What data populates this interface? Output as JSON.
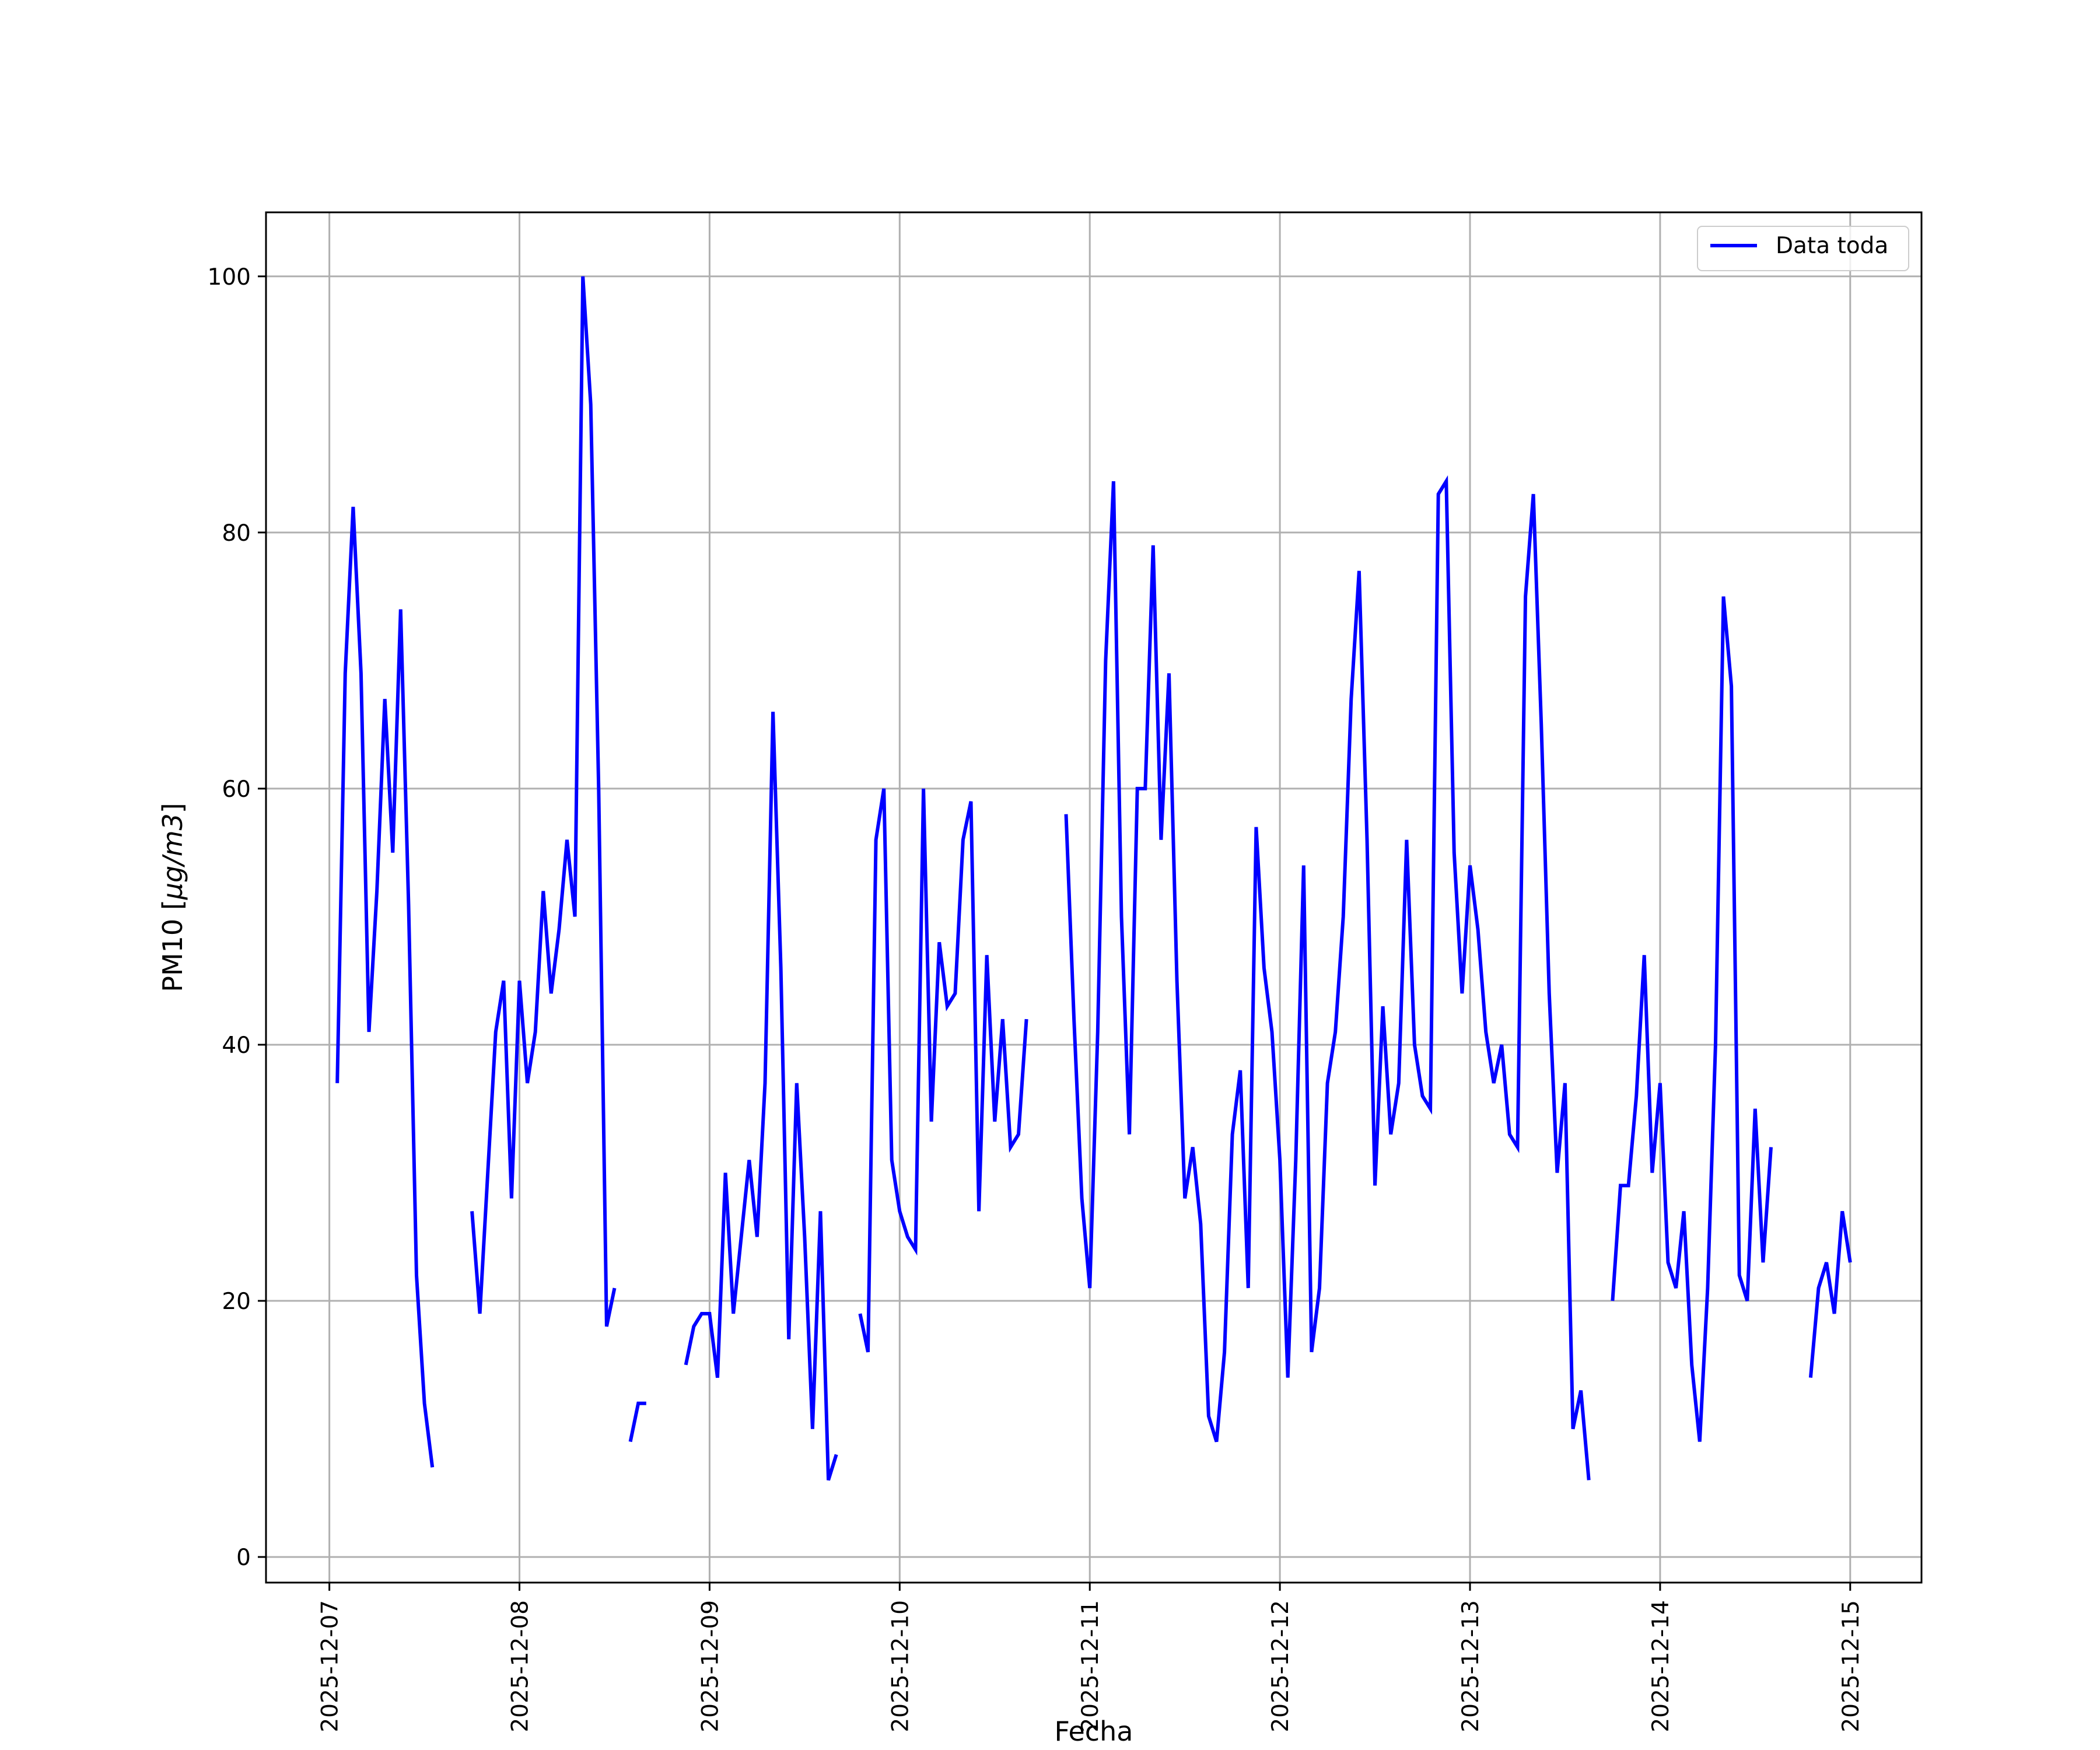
{
  "chart_data": {
    "type": "line",
    "title": "",
    "xlabel": "Fecha",
    "ylabel_prefix": "PM10 [",
    "ylabel_unit": "µg/m3",
    "ylabel_suffix": "]",
    "x_is_date": true,
    "xlim": [
      "2025-12-06T16:00",
      "2025-12-15T09:00"
    ],
    "ylim": [
      -2,
      105
    ],
    "x_ticks": [
      "2025-12-07",
      "2025-12-08",
      "2025-12-09",
      "2025-12-10",
      "2025-12-11",
      "2025-12-12",
      "2025-12-13",
      "2025-12-14",
      "2025-12-15"
    ],
    "y_ticks": [
      0,
      20,
      40,
      60,
      80,
      100
    ],
    "y_tick_labels": [
      "0",
      "20",
      "40",
      "60",
      "80",
      "100"
    ],
    "grid": true,
    "legend_position": "top-right",
    "colors": {
      "series": "#0000ff",
      "grid": "#b0b0b0"
    },
    "series": [
      {
        "name": "Data toda",
        "color": "#0000ff",
        "points": [
          [
            "2025-12-07T01:00",
            37
          ],
          [
            "2025-12-07T02:00",
            69
          ],
          [
            "2025-12-07T03:00",
            82
          ],
          [
            "2025-12-07T04:00",
            69
          ],
          [
            "2025-12-07T05:00",
            41
          ],
          [
            "2025-12-07T06:00",
            52
          ],
          [
            "2025-12-07T07:00",
            67
          ],
          [
            "2025-12-07T08:00",
            55
          ],
          [
            "2025-12-07T09:00",
            74
          ],
          [
            "2025-12-07T10:00",
            51
          ],
          [
            "2025-12-07T11:00",
            22
          ],
          [
            "2025-12-07T12:00",
            12
          ],
          [
            "2025-12-07T13:00",
            7
          ],
          [
            "2025-12-07T14:00",
            null
          ],
          [
            "2025-12-07T18:00",
            27
          ],
          [
            "2025-12-07T19:00",
            19
          ],
          [
            "2025-12-07T20:00",
            30
          ],
          [
            "2025-12-07T21:00",
            41
          ],
          [
            "2025-12-07T22:00",
            45
          ],
          [
            "2025-12-07T23:00",
            28
          ],
          [
            "2025-12-08T00:00",
            45
          ],
          [
            "2025-12-08T01:00",
            37
          ],
          [
            "2025-12-08T02:00",
            41
          ],
          [
            "2025-12-08T03:00",
            52
          ],
          [
            "2025-12-08T04:00",
            44
          ],
          [
            "2025-12-08T05:00",
            49
          ],
          [
            "2025-12-08T06:00",
            56
          ],
          [
            "2025-12-08T07:00",
            50
          ],
          [
            "2025-12-08T08:00",
            100
          ],
          [
            "2025-12-08T09:00",
            90
          ],
          [
            "2025-12-08T10:00",
            60
          ],
          [
            "2025-12-08T11:00",
            18
          ],
          [
            "2025-12-08T12:00",
            21
          ],
          [
            "2025-12-08T13:00",
            null
          ],
          [
            "2025-12-08T14:00",
            9
          ],
          [
            "2025-12-08T15:00",
            12
          ],
          [
            "2025-12-08T16:00",
            12
          ],
          [
            "2025-12-08T17:00",
            null
          ],
          [
            "2025-12-08T21:00",
            15
          ],
          [
            "2025-12-08T22:00",
            18
          ],
          [
            "2025-12-08T23:00",
            19
          ],
          [
            "2025-12-09T00:00",
            19
          ],
          [
            "2025-12-09T01:00",
            14
          ],
          [
            "2025-12-09T02:00",
            30
          ],
          [
            "2025-12-09T03:00",
            19
          ],
          [
            "2025-12-09T04:00",
            25
          ],
          [
            "2025-12-09T05:00",
            31
          ],
          [
            "2025-12-09T06:00",
            25
          ],
          [
            "2025-12-09T07:00",
            37
          ],
          [
            "2025-12-09T08:00",
            66
          ],
          [
            "2025-12-09T09:00",
            46
          ],
          [
            "2025-12-09T10:00",
            17
          ],
          [
            "2025-12-09T11:00",
            37
          ],
          [
            "2025-12-09T12:00",
            25
          ],
          [
            "2025-12-09T13:00",
            10
          ],
          [
            "2025-12-09T14:00",
            27
          ],
          [
            "2025-12-09T15:00",
            6
          ],
          [
            "2025-12-09T16:00",
            8
          ],
          [
            "2025-12-09T17:00",
            null
          ],
          [
            "2025-12-09T19:00",
            19
          ],
          [
            "2025-12-09T20:00",
            16
          ],
          [
            "2025-12-09T21:00",
            56
          ],
          [
            "2025-12-09T22:00",
            60
          ],
          [
            "2025-12-09T23:00",
            31
          ],
          [
            "2025-12-10T00:00",
            27
          ],
          [
            "2025-12-10T01:00",
            25
          ],
          [
            "2025-12-10T02:00",
            24
          ],
          [
            "2025-12-10T03:00",
            60
          ],
          [
            "2025-12-10T04:00",
            34
          ],
          [
            "2025-12-10T05:00",
            48
          ],
          [
            "2025-12-10T06:00",
            43
          ],
          [
            "2025-12-10T07:00",
            44
          ],
          [
            "2025-12-10T08:00",
            56
          ],
          [
            "2025-12-10T09:00",
            59
          ],
          [
            "2025-12-10T10:00",
            27
          ],
          [
            "2025-12-10T11:00",
            47
          ],
          [
            "2025-12-10T12:00",
            34
          ],
          [
            "2025-12-10T13:00",
            42
          ],
          [
            "2025-12-10T14:00",
            32
          ],
          [
            "2025-12-10T15:00",
            33
          ],
          [
            "2025-12-10T16:00",
            42
          ],
          [
            "2025-12-10T17:00",
            null
          ],
          [
            "2025-12-10T21:00",
            58
          ],
          [
            "2025-12-10T22:00",
            42
          ],
          [
            "2025-12-10T23:00",
            28
          ],
          [
            "2025-12-11T00:00",
            21
          ],
          [
            "2025-12-11T01:00",
            41
          ],
          [
            "2025-12-11T02:00",
            70
          ],
          [
            "2025-12-11T03:00",
            84
          ],
          [
            "2025-12-11T04:00",
            50
          ],
          [
            "2025-12-11T05:00",
            33
          ],
          [
            "2025-12-11T06:00",
            60
          ],
          [
            "2025-12-11T07:00",
            60
          ],
          [
            "2025-12-11T08:00",
            79
          ],
          [
            "2025-12-11T09:00",
            56
          ],
          [
            "2025-12-11T10:00",
            69
          ],
          [
            "2025-12-11T11:00",
            45
          ],
          [
            "2025-12-11T12:00",
            28
          ],
          [
            "2025-12-11T13:00",
            32
          ],
          [
            "2025-12-11T14:00",
            26
          ],
          [
            "2025-12-11T15:00",
            11
          ],
          [
            "2025-12-11T16:00",
            9
          ],
          [
            "2025-12-11T17:00",
            16
          ],
          [
            "2025-12-11T18:00",
            33
          ],
          [
            "2025-12-11T19:00",
            38
          ],
          [
            "2025-12-11T20:00",
            21
          ],
          [
            "2025-12-11T21:00",
            57
          ],
          [
            "2025-12-11T22:00",
            46
          ],
          [
            "2025-12-11T23:00",
            41
          ],
          [
            "2025-12-12T00:00",
            31
          ],
          [
            "2025-12-12T01:00",
            14
          ],
          [
            "2025-12-12T02:00",
            31
          ],
          [
            "2025-12-12T03:00",
            54
          ],
          [
            "2025-12-12T04:00",
            16
          ],
          [
            "2025-12-12T05:00",
            21
          ],
          [
            "2025-12-12T06:00",
            37
          ],
          [
            "2025-12-12T07:00",
            41
          ],
          [
            "2025-12-12T08:00",
            50
          ],
          [
            "2025-12-12T09:00",
            67
          ],
          [
            "2025-12-12T10:00",
            77
          ],
          [
            "2025-12-12T11:00",
            56
          ],
          [
            "2025-12-12T12:00",
            29
          ],
          [
            "2025-12-12T13:00",
            43
          ],
          [
            "2025-12-12T14:00",
            33
          ],
          [
            "2025-12-12T15:00",
            37
          ],
          [
            "2025-12-12T16:00",
            56
          ],
          [
            "2025-12-12T17:00",
            40
          ],
          [
            "2025-12-12T18:00",
            36
          ],
          [
            "2025-12-12T19:00",
            35
          ],
          [
            "2025-12-12T20:00",
            83
          ],
          [
            "2025-12-12T21:00",
            84
          ],
          [
            "2025-12-12T22:00",
            55
          ],
          [
            "2025-12-12T23:00",
            44
          ],
          [
            "2025-12-13T00:00",
            54
          ],
          [
            "2025-12-13T01:00",
            49
          ],
          [
            "2025-12-13T02:00",
            41
          ],
          [
            "2025-12-13T03:00",
            37
          ],
          [
            "2025-12-13T04:00",
            40
          ],
          [
            "2025-12-13T05:00",
            33
          ],
          [
            "2025-12-13T06:00",
            32
          ],
          [
            "2025-12-13T07:00",
            75
          ],
          [
            "2025-12-13T08:00",
            83
          ],
          [
            "2025-12-13T09:00",
            65
          ],
          [
            "2025-12-13T10:00",
            44
          ],
          [
            "2025-12-13T11:00",
            30
          ],
          [
            "2025-12-13T12:00",
            37
          ],
          [
            "2025-12-13T13:00",
            10
          ],
          [
            "2025-12-13T14:00",
            13
          ],
          [
            "2025-12-13T15:00",
            6
          ],
          [
            "2025-12-13T16:00",
            null
          ],
          [
            "2025-12-13T18:00",
            20
          ],
          [
            "2025-12-13T19:00",
            29
          ],
          [
            "2025-12-13T20:00",
            29
          ],
          [
            "2025-12-13T21:00",
            36
          ],
          [
            "2025-12-13T22:00",
            47
          ],
          [
            "2025-12-13T23:00",
            30
          ],
          [
            "2025-12-14T00:00",
            37
          ],
          [
            "2025-12-14T01:00",
            23
          ],
          [
            "2025-12-14T02:00",
            21
          ],
          [
            "2025-12-14T03:00",
            27
          ],
          [
            "2025-12-14T04:00",
            15
          ],
          [
            "2025-12-14T05:00",
            9
          ],
          [
            "2025-12-14T06:00",
            21
          ],
          [
            "2025-12-14T07:00",
            40
          ],
          [
            "2025-12-14T08:00",
            75
          ],
          [
            "2025-12-14T09:00",
            68
          ],
          [
            "2025-12-14T10:00",
            22
          ],
          [
            "2025-12-14T11:00",
            20
          ],
          [
            "2025-12-14T12:00",
            35
          ],
          [
            "2025-12-14T13:00",
            23
          ],
          [
            "2025-12-14T14:00",
            32
          ],
          [
            "2025-12-14T15:00",
            null
          ],
          [
            "2025-12-14T19:00",
            14
          ],
          [
            "2025-12-14T20:00",
            21
          ],
          [
            "2025-12-14T21:00",
            23
          ],
          [
            "2025-12-14T22:00",
            19
          ],
          [
            "2025-12-14T23:00",
            27
          ],
          [
            "2025-12-15T00:00",
            23
          ]
        ]
      }
    ]
  }
}
